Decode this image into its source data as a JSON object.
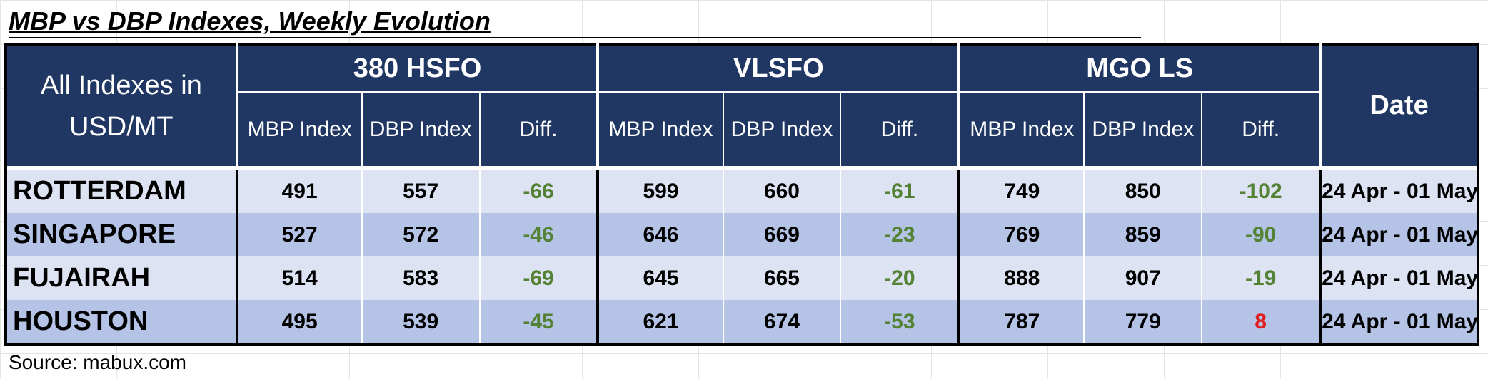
{
  "title": "MBP vs DBP Indexes, Weekly Evolution",
  "header": {
    "corner_label": "All Indexes in USD/MT",
    "groups": [
      "380 HSFO",
      "VLSFO",
      "MGO LS"
    ],
    "sub_labels": [
      "MBP Index",
      "DBP Index",
      "Diff."
    ],
    "date_label": "Date"
  },
  "rows": [
    {
      "port": "ROTTERDAM",
      "hsfo": {
        "mbp": "491",
        "dbp": "557",
        "diff": "-66"
      },
      "vlsfo": {
        "mbp": "599",
        "dbp": "660",
        "diff": "-61"
      },
      "mgo": {
        "mbp": "749",
        "dbp": "850",
        "diff": "-102"
      },
      "date": "24 Apr - 01 May"
    },
    {
      "port": "SINGAPORE",
      "hsfo": {
        "mbp": "527",
        "dbp": "572",
        "diff": "-46"
      },
      "vlsfo": {
        "mbp": "646",
        "dbp": "669",
        "diff": "-23"
      },
      "mgo": {
        "mbp": "769",
        "dbp": "859",
        "diff": "-90"
      },
      "date": "24 Apr - 01 May"
    },
    {
      "port": "FUJAIRAH",
      "hsfo": {
        "mbp": "514",
        "dbp": "583",
        "diff": "-69"
      },
      "vlsfo": {
        "mbp": "645",
        "dbp": "665",
        "diff": "-20"
      },
      "mgo": {
        "mbp": "888",
        "dbp": "907",
        "diff": "-19"
      },
      "date": "24 Apr - 01 May"
    },
    {
      "port": "HOUSTON",
      "hsfo": {
        "mbp": "495",
        "dbp": "539",
        "diff": "-45"
      },
      "vlsfo": {
        "mbp": "621",
        "dbp": "674",
        "diff": "-53"
      },
      "mgo": {
        "mbp": "787",
        "dbp": "779",
        "diff": "8"
      },
      "date": "24 Apr - 01 May"
    }
  ],
  "colors": {
    "header_bg": "#203764",
    "row_light": "#dde3f3",
    "row_dark": "#b4c3e6",
    "diff_negative": "#548235",
    "diff_positive": "#e02020"
  },
  "source": "Source: mabux.com"
}
